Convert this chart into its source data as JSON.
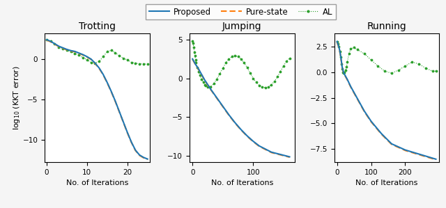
{
  "titles": [
    "Trotting",
    "Jumping",
    "Running"
  ],
  "xlabel": "No. of Iterations",
  "ylabel": "log$_{10}$ (KKT error)",
  "proposed_color": "#1f77b4",
  "purestate_color": "#ff7f0e",
  "al_color": "#2ca02c",
  "fig_facecolor": "#f5f5f5",
  "ax_facecolor": "#ffffff",
  "trot_xlim": [
    -0.5,
    25.5
  ],
  "trot_ylim": [
    -12.8,
    3.2
  ],
  "trot_xticks": [
    0,
    10,
    20
  ],
  "trot_yticks": [
    0,
    -5,
    -10
  ],
  "jump_xlim": [
    -5,
    168
  ],
  "jump_ylim": [
    -10.8,
    5.8
  ],
  "jump_xticks": [
    0,
    100
  ],
  "jump_yticks": [
    5,
    0,
    -5,
    -10
  ],
  "run_xlim": [
    -8,
    300
  ],
  "run_ylim": [
    -8.8,
    3.8
  ],
  "run_xticks": [
    0,
    100,
    200
  ],
  "run_yticks": [
    2.5,
    0.0,
    -2.5,
    -5.0,
    -7.5
  ],
  "trot_prop_x": [
    0,
    1,
    2,
    3,
    4,
    5,
    6,
    7,
    8,
    9,
    10,
    11,
    12,
    13,
    14,
    15,
    16,
    17,
    18,
    19,
    20,
    21,
    22,
    23,
    24,
    25
  ],
  "trot_prop_y": [
    2.4,
    2.2,
    1.9,
    1.6,
    1.4,
    1.2,
    1.05,
    0.95,
    0.75,
    0.55,
    0.3,
    0.0,
    -0.5,
    -1.1,
    -1.9,
    -2.9,
    -4.0,
    -5.2,
    -6.5,
    -7.8,
    -9.1,
    -10.3,
    -11.3,
    -11.9,
    -12.2,
    -12.4
  ],
  "trot_pure_y": [
    2.35,
    2.15,
    1.85,
    1.55,
    1.35,
    1.15,
    1.0,
    0.9,
    0.7,
    0.5,
    0.25,
    -0.05,
    -0.55,
    -1.15,
    -1.95,
    -2.95,
    -4.05,
    -5.25,
    -6.55,
    -7.85,
    -9.15,
    -10.35,
    -11.35,
    -11.95,
    -12.25,
    -12.45
  ],
  "trot_al_x": [
    0,
    1,
    2,
    3,
    4,
    5,
    6,
    7,
    8,
    9,
    10,
    11,
    12,
    13,
    14,
    15,
    16,
    17,
    18,
    19,
    20,
    21,
    22,
    23,
    24,
    25
  ],
  "trot_al_y": [
    2.4,
    2.2,
    1.9,
    1.5,
    1.3,
    1.1,
    0.9,
    0.7,
    0.5,
    0.2,
    -0.1,
    -0.4,
    -0.5,
    -0.3,
    0.3,
    0.9,
    1.1,
    0.8,
    0.4,
    0.1,
    -0.1,
    -0.4,
    -0.5,
    -0.6,
    -0.6,
    -0.65
  ],
  "jump_prop_x": [
    0,
    5,
    10,
    15,
    20,
    30,
    40,
    50,
    60,
    70,
    80,
    90,
    100,
    110,
    120,
    130,
    140,
    150,
    160
  ],
  "jump_prop_y": [
    2.5,
    1.8,
    1.2,
    0.5,
    -0.2,
    -1.4,
    -2.5,
    -3.6,
    -4.7,
    -5.7,
    -6.6,
    -7.4,
    -8.1,
    -8.7,
    -9.1,
    -9.5,
    -9.7,
    -9.9,
    -10.1
  ],
  "jump_pure_y": [
    2.45,
    1.75,
    1.15,
    0.45,
    -0.25,
    -1.45,
    -2.55,
    -3.65,
    -4.75,
    -5.75,
    -6.65,
    -7.45,
    -8.15,
    -8.75,
    -9.15,
    -9.55,
    -9.75,
    -9.95,
    -10.15
  ],
  "jump_al_x": [
    0,
    1,
    2,
    3,
    4,
    5,
    6,
    8,
    10,
    12,
    15,
    18,
    20,
    22,
    25,
    28,
    30,
    35,
    40,
    45,
    50,
    55,
    60,
    65,
    70,
    75,
    80,
    85,
    90,
    95,
    100,
    105,
    110,
    115,
    120,
    125,
    130,
    135,
    140,
    145,
    150,
    155,
    160
  ],
  "jump_al_y": [
    4.8,
    4.5,
    4.0,
    3.4,
    2.9,
    2.4,
    2.0,
    1.4,
    0.9,
    0.4,
    -0.1,
    -0.5,
    -0.8,
    -0.9,
    -1.1,
    -1.15,
    -1.1,
    -0.7,
    -0.1,
    0.6,
    1.3,
    2.0,
    2.5,
    2.8,
    2.9,
    2.8,
    2.5,
    2.0,
    1.4,
    0.7,
    0.0,
    -0.5,
    -0.9,
    -1.1,
    -1.2,
    -1.1,
    -0.8,
    -0.4,
    0.2,
    0.9,
    1.6,
    2.2,
    2.6
  ],
  "run_prop_x": [
    0,
    2,
    5,
    8,
    10,
    13,
    15,
    18,
    20,
    25,
    30,
    40,
    60,
    80,
    100,
    130,
    160,
    200,
    240,
    270,
    290
  ],
  "run_prop_y": [
    3.0,
    2.8,
    2.5,
    2.1,
    1.7,
    1.0,
    0.5,
    0.1,
    -0.1,
    -0.4,
    -0.7,
    -1.4,
    -2.6,
    -3.8,
    -4.8,
    -6.0,
    -7.0,
    -7.6,
    -8.0,
    -8.3,
    -8.5
  ],
  "run_pure_y": [
    2.95,
    2.75,
    2.45,
    2.05,
    1.65,
    0.95,
    0.45,
    0.05,
    -0.15,
    -0.45,
    -0.75,
    -1.45,
    -2.65,
    -3.85,
    -4.85,
    -6.05,
    -7.05,
    -7.65,
    -8.05,
    -8.35,
    -8.55
  ],
  "run_al_x": [
    0,
    2,
    5,
    8,
    10,
    13,
    15,
    18,
    20,
    22,
    25,
    28,
    30,
    35,
    40,
    50,
    60,
    80,
    100,
    120,
    140,
    160,
    180,
    200,
    220,
    240,
    260,
    280,
    290
  ],
  "run_al_y": [
    3.0,
    2.8,
    2.5,
    2.0,
    1.5,
    0.8,
    0.3,
    -0.0,
    -0.1,
    0.0,
    0.2,
    0.5,
    1.0,
    1.8,
    2.3,
    2.4,
    2.2,
    1.8,
    1.2,
    0.6,
    0.1,
    -0.1,
    0.2,
    0.6,
    1.0,
    0.8,
    0.4,
    0.1,
    0.1
  ]
}
